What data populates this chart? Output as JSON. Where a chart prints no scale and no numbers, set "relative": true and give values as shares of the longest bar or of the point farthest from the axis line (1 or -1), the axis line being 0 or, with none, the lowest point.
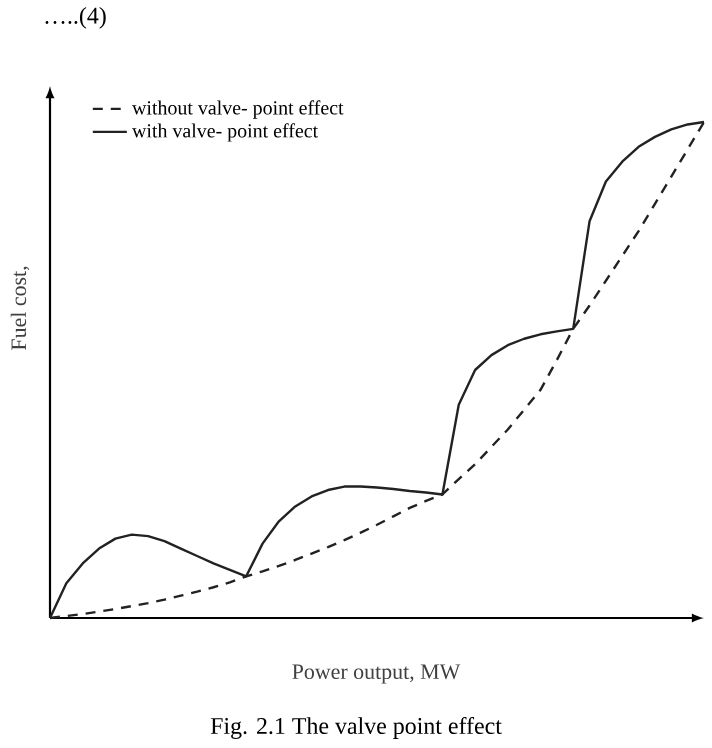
{
  "chart_data": {
    "type": "line",
    "relative": true,
    "xlabel": "Power output, MW",
    "ylabel": "Fuel cost,",
    "annotations": [
      "…..(4)",
      "Fig. 2.1 The valve point effect"
    ],
    "categories": [
      null,
      null,
      null,
      null,
      null,
      null,
      null,
      null,
      null,
      null,
      null,
      null,
      null,
      null,
      null,
      null,
      null,
      null,
      null,
      null,
      null,
      null,
      null,
      null,
      null,
      null,
      null,
      null,
      null,
      null,
      null,
      null,
      null,
      null,
      null,
      null,
      null,
      null,
      null,
      null,
      null
    ],
    "series": [
      {
        "name": "without valve- point effect",
        "color": "#222222",
        "line_style": "dashed",
        "values": [
          0,
          0.004,
          0.008,
          0.013,
          0.018,
          0.024,
          0.03,
          0.037,
          0.045,
          0.053,
          0.062,
          0.072,
          0.084,
          0.094,
          0.105,
          0.117,
          0.13,
          0.143,
          0.157,
          0.172,
          0.188,
          0.205,
          0.222,
          0.236,
          0.249,
          0.28,
          0.31,
          0.345,
          0.38,
          0.42,
          0.46,
          0.52,
          0.583,
          0.63,
          0.68,
          0.73,
          0.78,
          0.835,
          0.89,
          0.945,
          1
        ]
      },
      {
        "name": "with valve- point effect",
        "color": "#222222",
        "line_style": "solid",
        "values": [
          0,
          0.07,
          0.11,
          0.14,
          0.16,
          0.168,
          0.165,
          0.155,
          0.14,
          0.125,
          0.11,
          0.097,
          0.084,
          0.15,
          0.195,
          0.225,
          0.245,
          0.258,
          0.265,
          0.265,
          0.263,
          0.26,
          0.256,
          0.253,
          0.249,
          0.43,
          0.5,
          0.53,
          0.55,
          0.563,
          0.572,
          0.578,
          0.583,
          0.8,
          0.88,
          0.92,
          0.95,
          0.97,
          0.985,
          0.995,
          1
        ]
      }
    ],
    "legend": "top left",
    "marker": "none"
  }
}
